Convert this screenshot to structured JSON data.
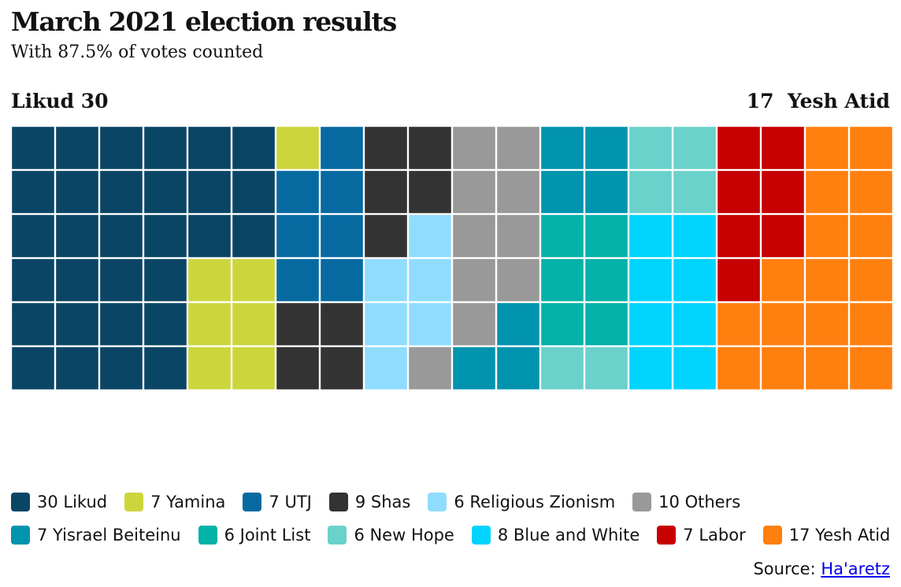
{
  "chart_data": {
    "type": "waffle",
    "title": "March 2021 election results",
    "subtitle": "With 87.5% of votes counted",
    "left_label": "Likud 30",
    "right_label_value": "17",
    "right_label_party": "Yesh Atid",
    "rows": 6,
    "columns": 20,
    "series": [
      {
        "name": "Likud",
        "value": 30,
        "color": "#0b4565",
        "legend": "30 Likud"
      },
      {
        "name": "Yamina",
        "value": 7,
        "color": "#ccd63c",
        "legend": "7 Yamina"
      },
      {
        "name": "UTJ",
        "value": 7,
        "color": "#066aa1",
        "legend": "7 UTJ"
      },
      {
        "name": "Shas",
        "value": 9,
        "color": "#333333",
        "legend": "9 Shas"
      },
      {
        "name": "Religious Zionism",
        "value": 6,
        "color": "#90dcff",
        "legend": "6 Religious Zionism"
      },
      {
        "name": "Others",
        "value": 10,
        "color": "#999999",
        "legend": "10 Others"
      },
      {
        "name": "Yisrael Beiteinu",
        "value": 7,
        "color": "#0194ae",
        "legend": "7 Yisrael Beiteinu"
      },
      {
        "name": "Joint List",
        "value": 6,
        "color": "#03b2a9",
        "legend": "6 Joint List"
      },
      {
        "name": "New Hope",
        "value": 6,
        "color": "#6bd1cb",
        "legend": "6 New Hope"
      },
      {
        "name": "Blue and White",
        "value": 8,
        "color": "#00d4ff",
        "legend": "8 Blue and White"
      },
      {
        "name": "Labor",
        "value": 7,
        "color": "#c70000",
        "legend": "7 Labor"
      },
      {
        "name": "Yesh Atid",
        "value": 17,
        "color": "#ff7f0f",
        "legend": "17 Yesh Atid"
      }
    ],
    "source_label": "Source:",
    "source_link": "Ha'aretz"
  }
}
